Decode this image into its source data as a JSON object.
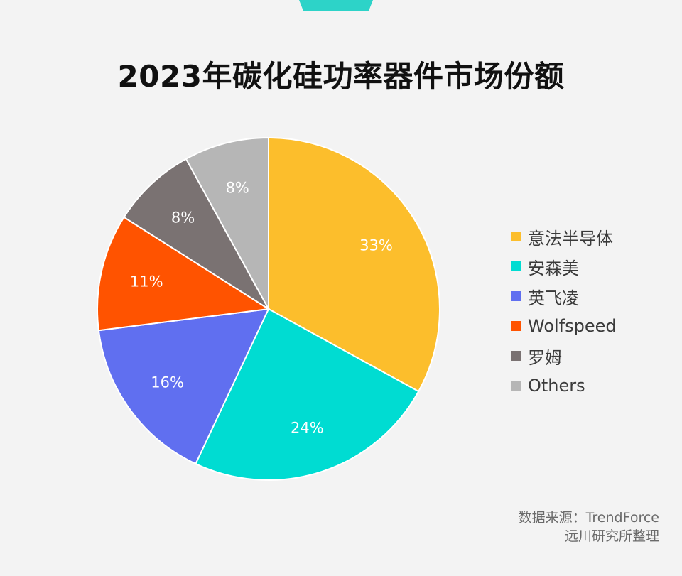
{
  "chart_data": {
    "type": "pie",
    "title": "2023年碳化硅功率器件市场份额",
    "categories": [
      "意法半导体",
      "安森美",
      "英飞凌",
      "Wolfspeed",
      "罗姆",
      "Others"
    ],
    "values": [
      33,
      24,
      16,
      11,
      8,
      8
    ],
    "value_labels": [
      "33%",
      "24%",
      "16%",
      "11%",
      "8%",
      "8%"
    ],
    "colors": [
      "#fcbe2c",
      "#00dcd2",
      "#606ff0",
      "#ff5300",
      "#7a7272",
      "#b6b6b6"
    ],
    "start_angle_deg": 0,
    "direction": "clockwise",
    "legend_position": "right"
  },
  "source": {
    "line1": "数据来源：TrendForce",
    "line2": "远川研究所整理"
  }
}
